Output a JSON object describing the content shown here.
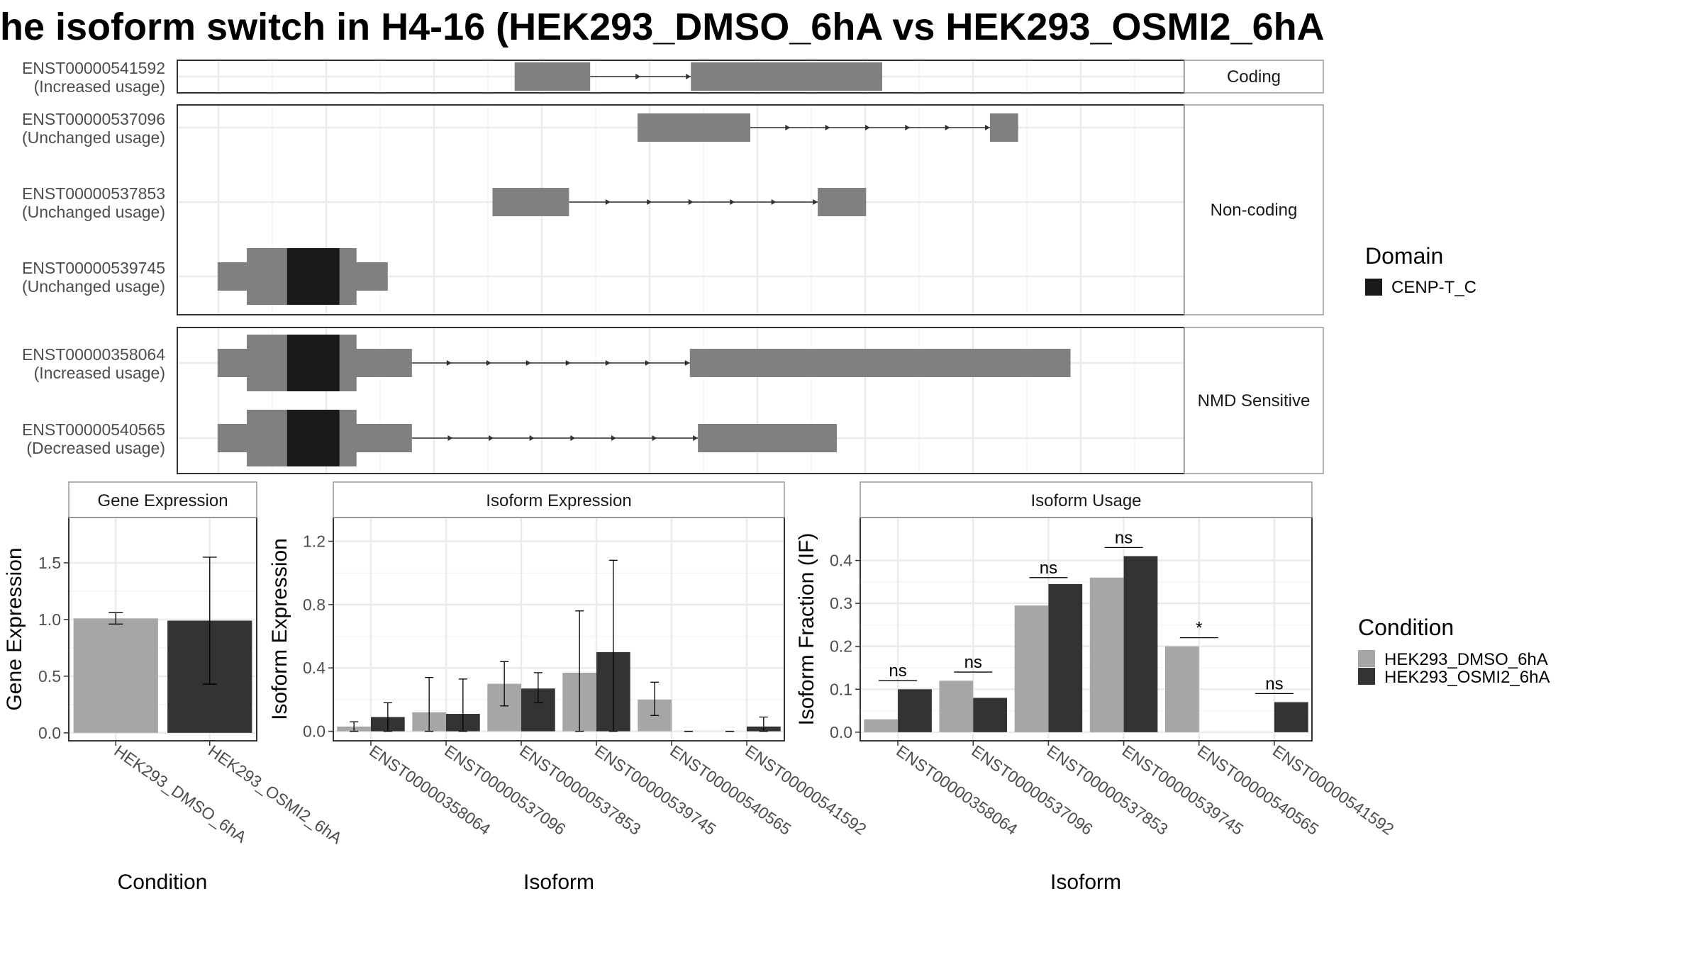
{
  "title": "he isoform switch in H4-16 (HEK293_DMSO_6hA vs HEK293_OSMI2_6hA",
  "domain_legend": {
    "title": "Domain",
    "items": [
      {
        "label": "CENP-T_C",
        "color": "#1a1a1a"
      }
    ]
  },
  "condition_legend": {
    "title": "Condition",
    "items": [
      {
        "label": "HEK293_DMSO_6hA",
        "color": "#a6a6a6"
      },
      {
        "label": "HEK293_OSMI2_6hA",
        "color": "#333333"
      }
    ]
  },
  "colors": {
    "exon": "#808080",
    "domain": "#1a1a1a",
    "dmso": "#a6a6a6",
    "osmi": "#333333"
  },
  "structure": {
    "groups": [
      {
        "label": "Coding",
        "transcripts": [
          {
            "id": "ENST00000541592",
            "usage": "(Increased usage)",
            "exons": [
              [
                0.335,
                0.41
              ],
              [
                0.51,
                0.7
              ]
            ],
            "arrow_dir": "right",
            "domains": []
          }
        ]
      },
      {
        "label": "Non-coding",
        "transcripts": [
          {
            "id": "ENST00000537096",
            "usage": "(Unchanged usage)",
            "exons": [
              [
                0.457,
                0.569
              ],
              [
                0.807,
                0.835
              ]
            ],
            "arrow_dir": "right",
            "domains": []
          },
          {
            "id": "ENST00000537853",
            "usage": "(Unchanged usage)",
            "exons": [
              [
                0.313,
                0.389
              ],
              [
                0.636,
                0.684
              ]
            ],
            "arrow_dir": "right",
            "domains": []
          },
          {
            "id": "ENST00000539745",
            "usage": "(Unchanged usage)",
            "exons": [
              [
                0.04,
                0.209
              ]
            ],
            "arrow_dir": "right",
            "domains": [
              {
                "name": "CENP-T_C",
                "start": 0.069,
                "end": 0.178,
                "core": [
                  0.109,
                  0.161
                ]
              }
            ]
          }
        ]
      },
      {
        "label": "NMD Sensitive",
        "transcripts": [
          {
            "id": "ENST00000358064",
            "usage": "(Increased usage)",
            "exons": [
              [
                0.04,
                0.233
              ],
              [
                0.509,
                0.887
              ]
            ],
            "arrow_dir": "right",
            "domains": [
              {
                "name": "CENP-T_C",
                "start": 0.069,
                "end": 0.178,
                "core": [
                  0.109,
                  0.161
                ]
              }
            ]
          },
          {
            "id": "ENST00000540565",
            "usage": "(Decreased usage)",
            "exons": [
              [
                0.04,
                0.233
              ],
              [
                0.517,
                0.655
              ]
            ],
            "arrow_dir": "right",
            "domains": [
              {
                "name": "CENP-T_C",
                "start": 0.069,
                "end": 0.178,
                "core": [
                  0.109,
                  0.161
                ]
              }
            ]
          }
        ]
      }
    ]
  },
  "chart_data": [
    {
      "type": "bar",
      "title": "Gene Expression",
      "xlabel": "Condition",
      "ylabel": "Gene Expression",
      "ylim": [
        -0.07,
        1.9
      ],
      "yticks": [
        0.0,
        0.5,
        1.0,
        1.5
      ],
      "ytick_labels": [
        "0.0",
        "0.5",
        "1.0",
        "1.5"
      ],
      "categories": [
        "HEK293_DMSO_6hA",
        "HEK293_OSMI2_6hA"
      ],
      "values": [
        1.01,
        0.99
      ],
      "errors": [
        [
          0.96,
          1.06
        ],
        [
          0.43,
          1.55
        ]
      ],
      "bar_colors": [
        "#a6a6a6",
        "#333333"
      ]
    },
    {
      "type": "bar",
      "title": "Isoform Expression",
      "xlabel": "Isoform",
      "ylabel": "Isoform Expression",
      "ylim": [
        -0.06,
        1.35
      ],
      "yticks": [
        0.0,
        0.4,
        0.8,
        1.2
      ],
      "ytick_labels": [
        "0.0",
        "0.4",
        "0.8",
        "1.2"
      ],
      "categories": [
        "ENST00000358064",
        "ENST00000537096",
        "ENST00000537853",
        "ENST00000539745",
        "ENST00000540565",
        "ENST00000541592"
      ],
      "series": [
        {
          "name": "HEK293_DMSO_6hA",
          "values": [
            0.03,
            0.12,
            0.3,
            0.37,
            0.2,
            0.0
          ],
          "errors": [
            [
              0.0,
              0.06
            ],
            [
              0.0,
              0.34
            ],
            [
              0.16,
              0.44
            ],
            [
              0.0,
              0.76
            ],
            [
              0.1,
              0.31
            ],
            [
              0.0,
              0.0
            ]
          ]
        },
        {
          "name": "HEK293_OSMI2_6hA",
          "values": [
            0.09,
            0.11,
            0.27,
            0.5,
            0.0,
            0.03
          ],
          "errors": [
            [
              0.0,
              0.18
            ],
            [
              0.0,
              0.33
            ],
            [
              0.18,
              0.37
            ],
            [
              0.0,
              1.08
            ],
            [
              0.0,
              0.0
            ],
            [
              0.0,
              0.09
            ]
          ]
        }
      ]
    },
    {
      "type": "bar",
      "title": "Isoform Usage",
      "xlabel": "Isoform",
      "ylabel": "Isoform Fraction (IF)",
      "ylim": [
        -0.02,
        0.5
      ],
      "yticks": [
        0.0,
        0.1,
        0.2,
        0.3,
        0.4
      ],
      "ytick_labels": [
        "0.0",
        "0.1",
        "0.2",
        "0.3",
        "0.4"
      ],
      "categories": [
        "ENST00000358064",
        "ENST00000537096",
        "ENST00000537853",
        "ENST00000539745",
        "ENST00000540565",
        "ENST00000541592"
      ],
      "series": [
        {
          "name": "HEK293_DMSO_6hA",
          "values": [
            0.03,
            0.12,
            0.295,
            0.36,
            0.2,
            0.0
          ]
        },
        {
          "name": "HEK293_OSMI2_6hA",
          "values": [
            0.1,
            0.08,
            0.345,
            0.41,
            0.0,
            0.07
          ]
        }
      ],
      "significance": [
        "ns",
        "ns",
        "ns",
        "ns",
        "*",
        "ns"
      ],
      "significance_y": [
        0.12,
        0.14,
        0.36,
        0.43,
        0.22,
        0.09
      ]
    }
  ]
}
